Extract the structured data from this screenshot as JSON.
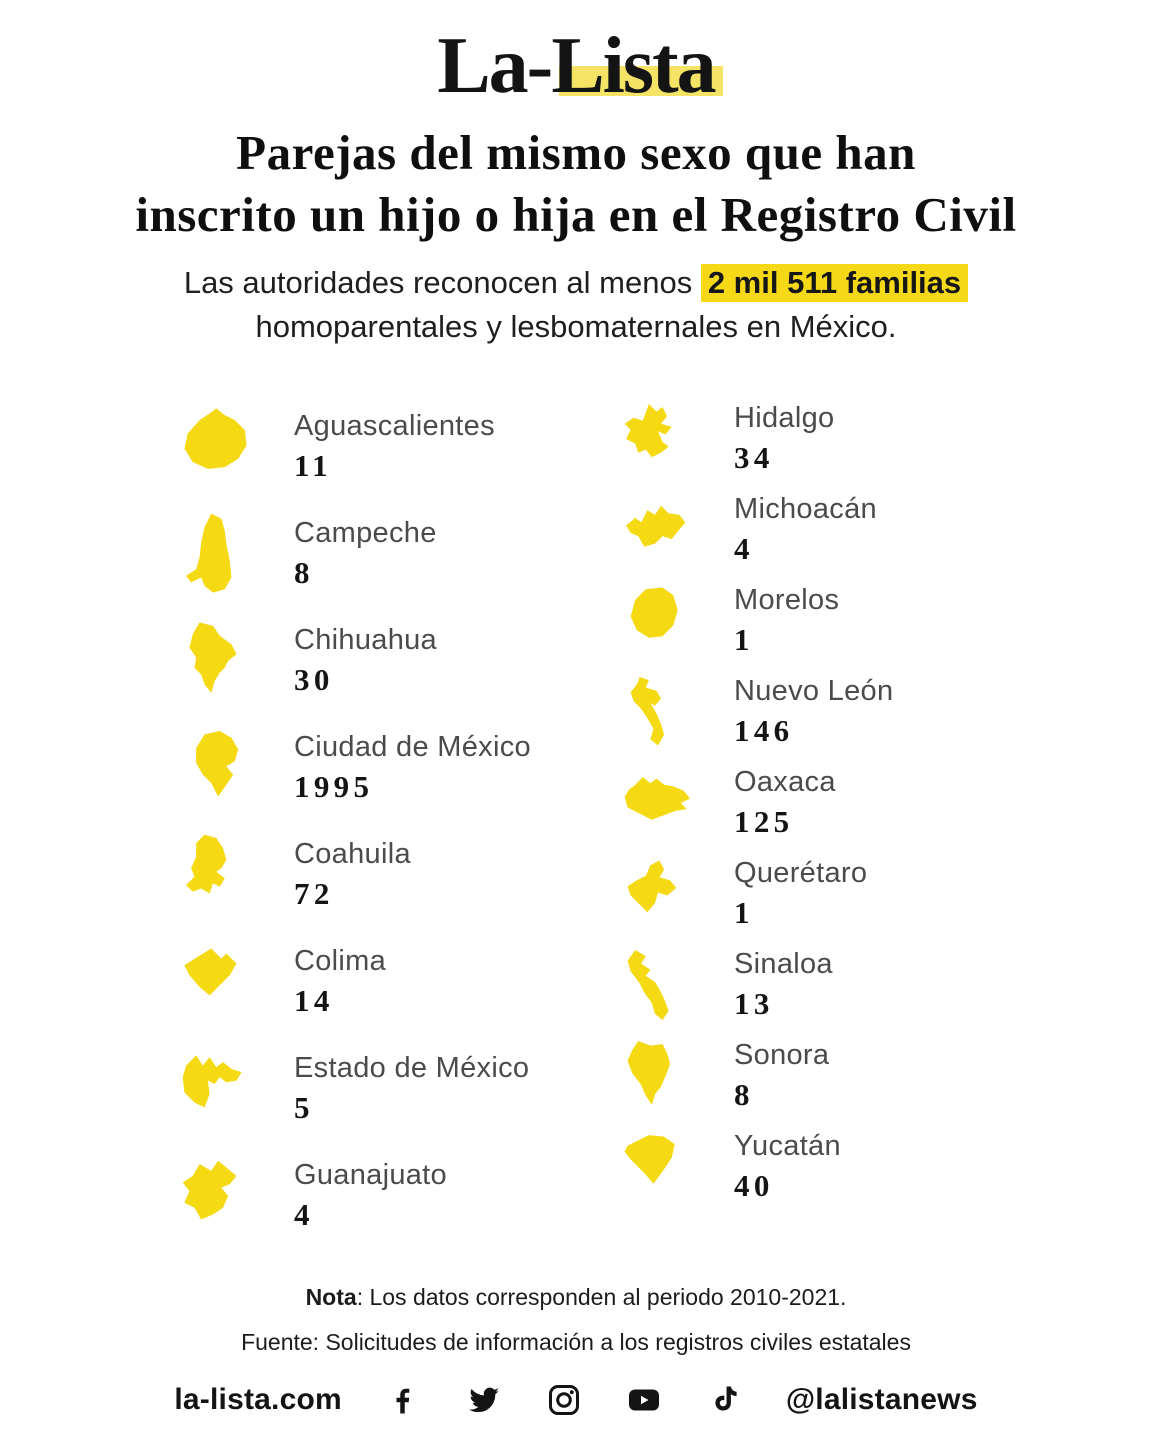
{
  "colors": {
    "shape_yellow": "#f5d913",
    "highlight_yellow": "#f5d917",
    "logo_band_yellow": "#f0d829",
    "label_gray": "#4b4b4b",
    "text_black": "#141414"
  },
  "logo": {
    "text": "La-Lista"
  },
  "title": {
    "line1": "Parejas del mismo sexo que han",
    "line2": "inscrito un hijo o hija en el Registro Civil"
  },
  "subtitle": {
    "prefix": "Las autoridades reconocen al menos ",
    "highlight": "2 mil 511 familias",
    "suffix": "homoparentales y lesbomaternales en México."
  },
  "states": {
    "left": [
      {
        "id": "aguascalientes",
        "name": "Aguascalientes",
        "value": "11"
      },
      {
        "id": "campeche",
        "name": "Campeche",
        "value": "8"
      },
      {
        "id": "chihuahua",
        "name": "Chihuahua",
        "value": "30"
      },
      {
        "id": "cdmx",
        "name": "Ciudad de México",
        "value": "1995"
      },
      {
        "id": "coahuila",
        "name": "Coahuila",
        "value": "72"
      },
      {
        "id": "colima",
        "name": "Colima",
        "value": "14"
      },
      {
        "id": "edomex",
        "name": "Estado de México",
        "value": "5"
      },
      {
        "id": "guanajuato",
        "name": "Guanajuato",
        "value": "4"
      }
    ],
    "right": [
      {
        "id": "hidalgo",
        "name": "Hidalgo",
        "value": "34"
      },
      {
        "id": "michoacan",
        "name": "Michoacán",
        "value": "4"
      },
      {
        "id": "morelos",
        "name": "Morelos",
        "value": "1"
      },
      {
        "id": "nuevoleon",
        "name": "Nuevo León",
        "value": "146"
      },
      {
        "id": "oaxaca",
        "name": "Oaxaca",
        "value": "125"
      },
      {
        "id": "queretaro",
        "name": "Querétaro",
        "value": "1"
      },
      {
        "id": "sinaloa",
        "name": "Sinaloa",
        "value": "13"
      },
      {
        "id": "sonora",
        "name": "Sonora",
        "value": "8"
      },
      {
        "id": "yucatan",
        "name": "Yucatán",
        "value": "40"
      }
    ]
  },
  "chart_data": {
    "type": "table",
    "title": "Parejas del mismo sexo que han inscrito un hijo o hija en el Registro Civil",
    "subtitle": "Las autoridades reconocen al menos 2 mil 511 familias homoparentales y lesbomaternales en México.",
    "total_families": 2511,
    "categories": [
      "Aguascalientes",
      "Campeche",
      "Chihuahua",
      "Ciudad de México",
      "Coahuila",
      "Colima",
      "Estado de México",
      "Guanajuato",
      "Hidalgo",
      "Michoacán",
      "Morelos",
      "Nuevo León",
      "Oaxaca",
      "Querétaro",
      "Sinaloa",
      "Sonora",
      "Yucatán"
    ],
    "values": [
      11,
      8,
      30,
      1995,
      72,
      14,
      5,
      4,
      34,
      4,
      1,
      146,
      125,
      1,
      13,
      8,
      40
    ],
    "note": "Los datos corresponden al periodo 2010-2021.",
    "source": "Solicitudes de información a los registros civiles estatales",
    "legend_position": "none",
    "grid": false
  },
  "nota": {
    "label": "Nota",
    "rest": ": Los datos corresponden al periodo 2010-2021."
  },
  "fuente": "Fuente: Solicitudes de información a los registros civiles estatales",
  "footer": {
    "site": "la-lista.com",
    "handle": "@lalistanews",
    "icons": [
      "facebook-icon",
      "twitter-icon",
      "instagram-icon",
      "youtube-icon",
      "tiktok-icon"
    ]
  }
}
